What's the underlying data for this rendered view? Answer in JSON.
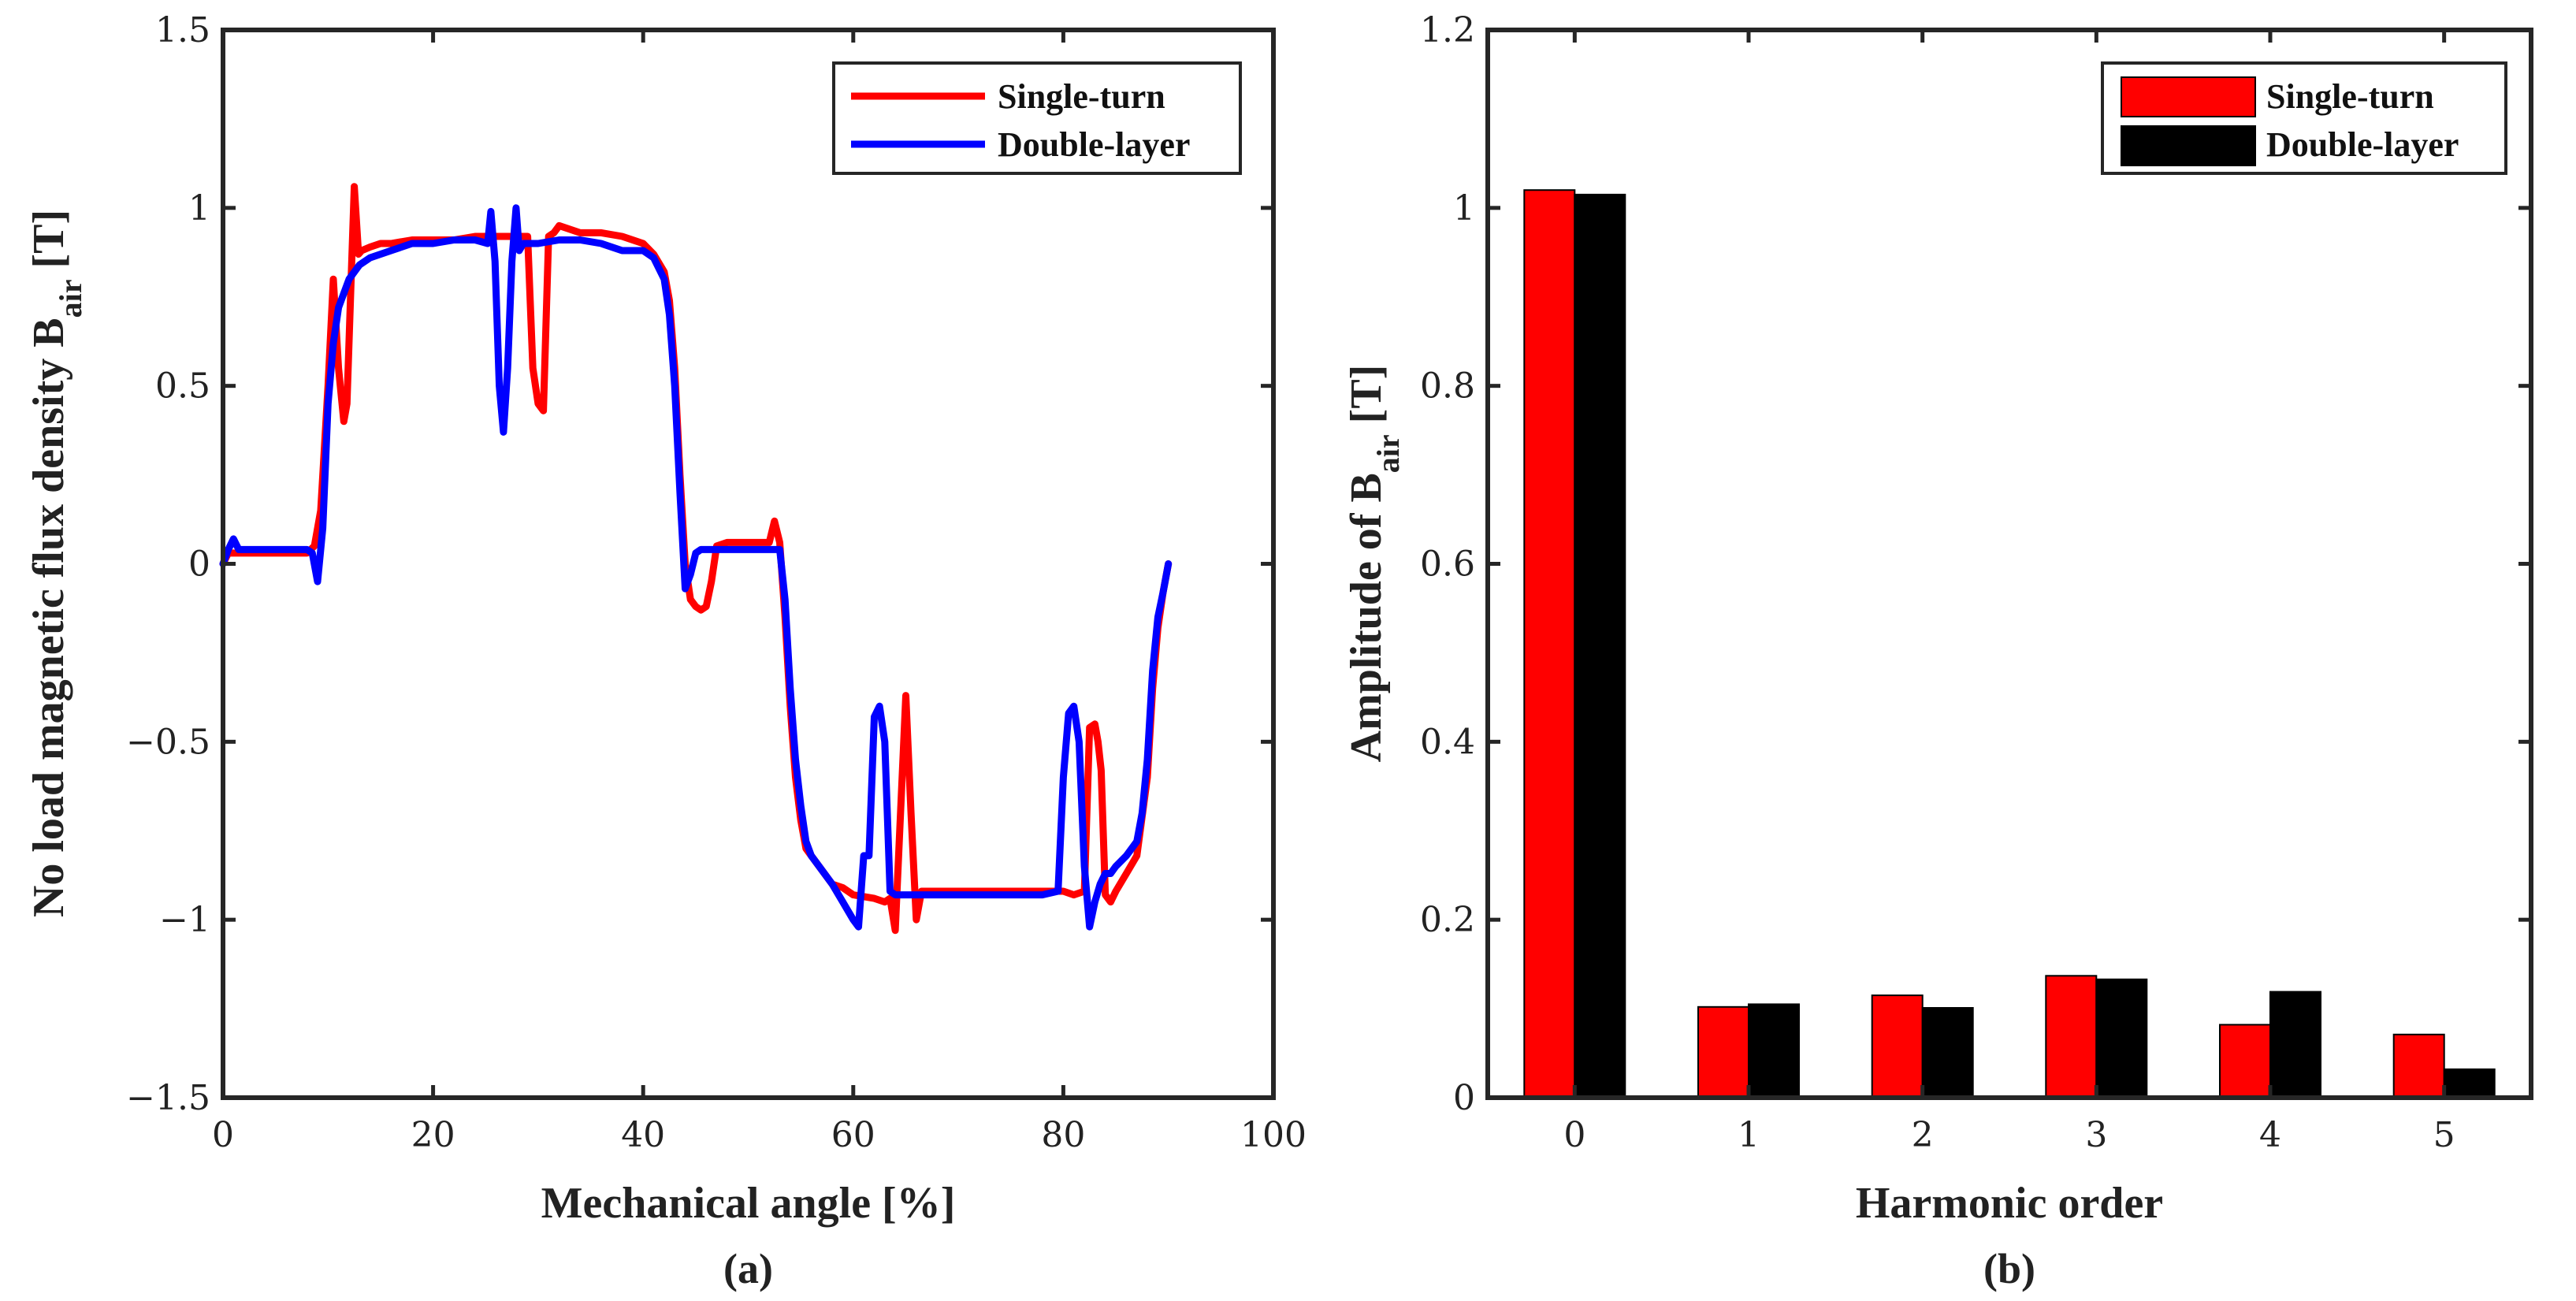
{
  "chart_data": [
    {
      "type": "line",
      "panel_caption": "(a)",
      "xlabel": "Mechanical angle [%]",
      "ylabel_main": "No load magnetic flux density B",
      "ylabel_sub": "air",
      "ylabel_suffix": " [T]",
      "xlim": [
        0,
        100
      ],
      "ylim": [
        -1.5,
        1.5
      ],
      "xticks": [
        0,
        20,
        40,
        60,
        80,
        100
      ],
      "yticks": [
        -1.5,
        -1,
        -0.5,
        0,
        0.5,
        1,
        1.5
      ],
      "xtick_labels": [
        "0",
        "20",
        "40",
        "60",
        "80",
        "100"
      ],
      "ytick_labels": [
        "−1.5",
        "−1",
        "−0.5",
        "0",
        "0.5",
        "1",
        "1.5"
      ],
      "grid": false,
      "legend_position": "top-right",
      "series": [
        {
          "name": "Single-turn",
          "color": "#ff0000",
          "x": [
            0,
            0.5,
            1,
            2,
            4,
            6,
            8,
            8.7,
            9.3,
            10,
            10.5,
            11,
            11.5,
            11.8,
            12.2,
            12.5,
            12.9,
            13.2,
            14,
            15,
            16,
            18,
            20,
            22,
            24,
            25,
            26,
            28,
            29,
            29.5,
            30,
            30.5,
            31,
            31.5,
            32,
            34,
            36,
            38,
            40,
            41,
            42,
            42.5,
            43,
            43.5,
            44,
            44.5,
            45,
            45.5,
            46,
            46.5,
            47,
            48,
            50,
            52,
            52.5,
            53,
            53.5,
            54,
            54.5,
            55,
            55.5,
            56,
            57,
            58,
            59,
            60,
            62,
            63,
            63.5,
            64,
            64.5,
            65,
            65.5,
            66,
            66.5,
            67,
            68,
            70,
            72,
            74,
            76,
            78,
            80,
            81,
            82,
            82.5,
            83,
            83.3,
            83.6,
            84,
            84.5,
            85,
            86,
            87,
            88,
            88.5,
            89,
            89.5,
            90
          ],
          "y": [
            0,
            0.03,
            0.03,
            0.03,
            0.03,
            0.03,
            0.03,
            0.05,
            0.15,
            0.5,
            0.8,
            0.55,
            0.4,
            0.45,
            0.8,
            1.06,
            0.87,
            0.88,
            0.89,
            0.9,
            0.9,
            0.91,
            0.91,
            0.91,
            0.92,
            0.92,
            0.92,
            0.92,
            0.92,
            0.55,
            0.45,
            0.43,
            0.92,
            0.93,
            0.95,
            0.93,
            0.93,
            0.92,
            0.9,
            0.87,
            0.82,
            0.74,
            0.55,
            0.25,
            0.0,
            -0.1,
            -0.12,
            -0.13,
            -0.12,
            -0.05,
            0.05,
            0.06,
            0.06,
            0.06,
            0.12,
            0.06,
            -0.15,
            -0.4,
            -0.6,
            -0.72,
            -0.8,
            -0.82,
            -0.86,
            -0.9,
            -0.91,
            -0.93,
            -0.94,
            -0.95,
            -0.94,
            -1.03,
            -0.7,
            -0.37,
            -0.7,
            -1.0,
            -0.92,
            -0.92,
            -0.92,
            -0.92,
            -0.92,
            -0.92,
            -0.92,
            -0.92,
            -0.92,
            -0.93,
            -0.92,
            -0.46,
            -0.45,
            -0.5,
            -0.58,
            -0.93,
            -0.95,
            -0.92,
            -0.87,
            -0.82,
            -0.6,
            -0.35,
            -0.18,
            -0.08,
            0.0
          ]
        },
        {
          "name": "Double-layer",
          "color": "#0000ff",
          "x": [
            0,
            0.5,
            1,
            1.5,
            2,
            4,
            6,
            8,
            8.5,
            9,
            9.5,
            10,
            10.5,
            11,
            12,
            13,
            14,
            16,
            18,
            20,
            22,
            24,
            25.2,
            25.5,
            25.9,
            26.3,
            26.7,
            27.1,
            27.5,
            27.9,
            28.2,
            28.6,
            29,
            30,
            32,
            34,
            36,
            38,
            40,
            41,
            42,
            42.5,
            43,
            43.5,
            44,
            44.5,
            45,
            45.5,
            46,
            48,
            50,
            52,
            53,
            53.5,
            54,
            54.5,
            55,
            55.5,
            56,
            57,
            58,
            59,
            60,
            60.5,
            61,
            61.5,
            62,
            62.5,
            63,
            63.5,
            64,
            64.5,
            65,
            66,
            68,
            70,
            72,
            74,
            76,
            78,
            79.5,
            80,
            80.5,
            81,
            81.5,
            82,
            82.5,
            83,
            83.5,
            84,
            84.5,
            85,
            86,
            87,
            87.5,
            88,
            88.5,
            89,
            89.5,
            90
          ],
          "y": [
            0.0,
            0.04,
            0.07,
            0.04,
            0.04,
            0.04,
            0.04,
            0.04,
            0.03,
            -0.05,
            0.1,
            0.45,
            0.62,
            0.72,
            0.8,
            0.84,
            0.86,
            0.88,
            0.9,
            0.9,
            0.91,
            0.91,
            0.9,
            0.99,
            0.85,
            0.5,
            0.37,
            0.55,
            0.85,
            1.0,
            0.88,
            0.9,
            0.9,
            0.9,
            0.91,
            0.91,
            0.9,
            0.88,
            0.88,
            0.86,
            0.8,
            0.7,
            0.5,
            0.2,
            -0.07,
            -0.03,
            0.03,
            0.04,
            0.04,
            0.04,
            0.04,
            0.04,
            0.04,
            -0.1,
            -0.35,
            -0.55,
            -0.68,
            -0.78,
            -0.82,
            -0.86,
            -0.9,
            -0.95,
            -1.0,
            -1.02,
            -0.82,
            -0.82,
            -0.43,
            -0.4,
            -0.5,
            -0.92,
            -0.93,
            -0.93,
            -0.93,
            -0.93,
            -0.93,
            -0.93,
            -0.93,
            -0.93,
            -0.93,
            -0.93,
            -0.92,
            -0.6,
            -0.42,
            -0.4,
            -0.5,
            -0.85,
            -1.02,
            -0.95,
            -0.9,
            -0.87,
            -0.87,
            -0.85,
            -0.82,
            -0.78,
            -0.7,
            -0.55,
            -0.3,
            -0.15,
            -0.08,
            0.0
          ]
        }
      ]
    },
    {
      "type": "bar",
      "panel_caption": "(b)",
      "xlabel": "Harmonic order",
      "ylabel_main": "Amplitude of B",
      "ylabel_sub": "air",
      "ylabel_suffix": " [T]",
      "categories": [
        "0",
        "1",
        "2",
        "3",
        "4",
        "5"
      ],
      "xlim": [
        -0.5,
        5.5
      ],
      "ylim": [
        0,
        1.2
      ],
      "yticks": [
        0,
        0.2,
        0.4,
        0.6,
        0.8,
        1,
        1.2
      ],
      "ytick_labels": [
        "0",
        "0.2",
        "0.4",
        "0.6",
        "0.8",
        "1",
        "1.2"
      ],
      "grid": false,
      "legend_position": "top-right",
      "series": [
        {
          "name": "Single-turn",
          "color": "#ff0000",
          "values": [
            1.02,
            0.102,
            0.115,
            0.137,
            0.082,
            0.071
          ]
        },
        {
          "name": "Double-layer",
          "color": "#000000",
          "values": [
            1.015,
            0.105,
            0.101,
            0.133,
            0.119,
            0.032
          ]
        }
      ]
    }
  ]
}
